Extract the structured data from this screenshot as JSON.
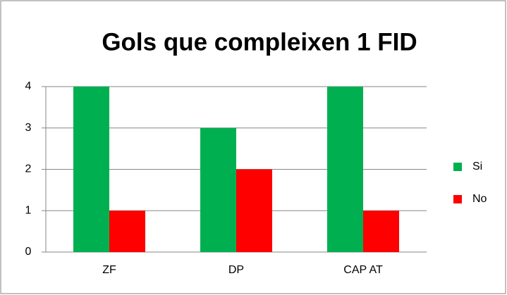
{
  "chart_data": {
    "type": "bar",
    "title": "Gols que compleixen 1 FID",
    "categories": [
      "ZF",
      "DP",
      "CAP AT"
    ],
    "series": [
      {
        "name": "Si",
        "color": "#00b050",
        "values": [
          4,
          3,
          4
        ]
      },
      {
        "name": "No",
        "color": "#ff0000",
        "values": [
          1,
          2,
          1
        ]
      }
    ],
    "ylim": [
      0,
      4
    ],
    "yticks": [
      0,
      1,
      2,
      3,
      4
    ],
    "grid": true,
    "legend": "right"
  }
}
